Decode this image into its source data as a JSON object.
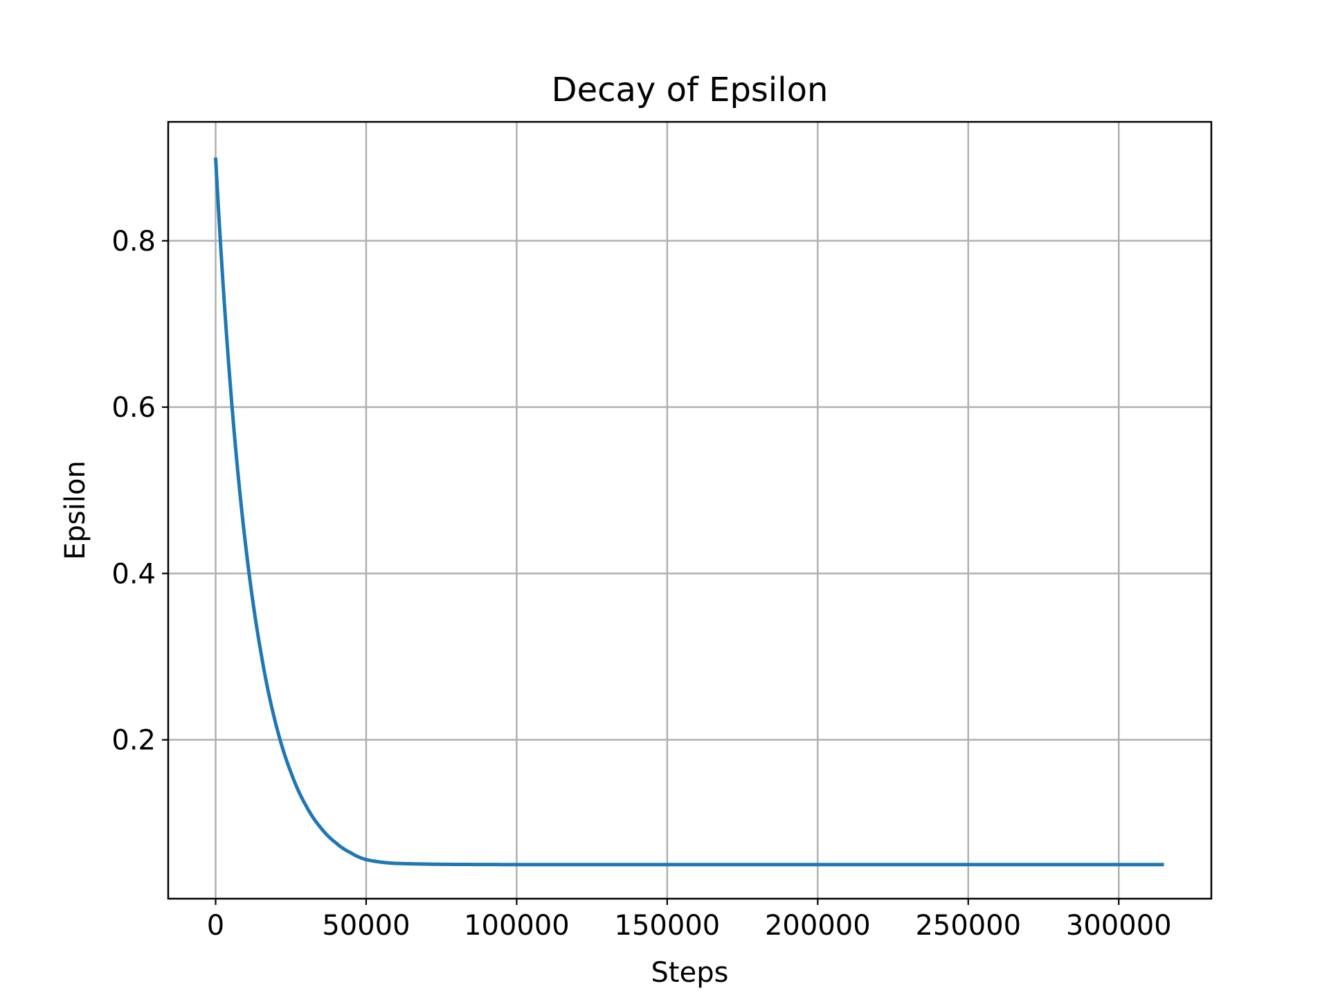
{
  "chart_data": {
    "type": "line",
    "title": "Decay of Epsilon",
    "xlabel": "Steps",
    "ylabel": "Epsilon",
    "xlim": [
      -15750,
      330750
    ],
    "ylim": [
      0.009,
      0.943
    ],
    "xticks": [
      0,
      50000,
      100000,
      150000,
      200000,
      250000,
      300000
    ],
    "yticks": [
      0.2,
      0.4,
      0.6,
      0.8
    ],
    "grid": true,
    "legend": "none",
    "colors": {
      "line": "#1f77b4",
      "grid": "#b0b0b0",
      "frame": "#000000"
    },
    "series": [
      {
        "x": [
          0,
          5000,
          10000,
          15000,
          20000,
          25000,
          30000,
          35000,
          40000,
          45000,
          50000,
          60000,
          70000,
          80000,
          90000,
          100000,
          150000,
          200000,
          250000,
          300000,
          315000
        ],
        "values": [
          0.9,
          0.621,
          0.433,
          0.306,
          0.219,
          0.161,
          0.121,
          0.094,
          0.076,
          0.064,
          0.056,
          0.0514,
          0.0506,
          0.0502,
          0.0501,
          0.05,
          0.05,
          0.05,
          0.05,
          0.05,
          0.05
        ]
      }
    ]
  }
}
